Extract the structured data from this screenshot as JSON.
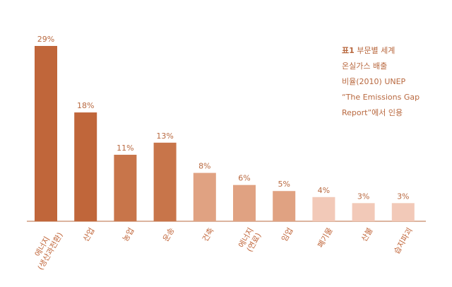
{
  "chart_data": {
    "type": "bar",
    "categories": [
      "에너지\n(생산과전환)",
      "산업",
      "농업",
      "운송",
      "건축",
      "에너지\n(연료)",
      "임업",
      "폐기물",
      "산불",
      "습지파괴"
    ],
    "values": [
      29,
      18,
      11,
      13,
      8,
      6,
      5,
      4,
      3,
      3
    ],
    "value_labels": [
      "29%",
      "18%",
      "11%",
      "13%",
      "8%",
      "6%",
      "5%",
      "4%",
      "3%",
      "3%"
    ],
    "colors": [
      "#c0663a",
      "#c0663a",
      "#c8754a",
      "#c8754a",
      "#e0a282",
      "#e0a282",
      "#e0a282",
      "#f2c9b8",
      "#f2c9b8",
      "#f2c9b8"
    ],
    "note_label": "표1",
    "note_lines": [
      "부문별 세계",
      "온실가스 배출",
      "비율(2010) UNEP",
      "“The Emissions Gap",
      "Report”에서 인용"
    ]
  }
}
